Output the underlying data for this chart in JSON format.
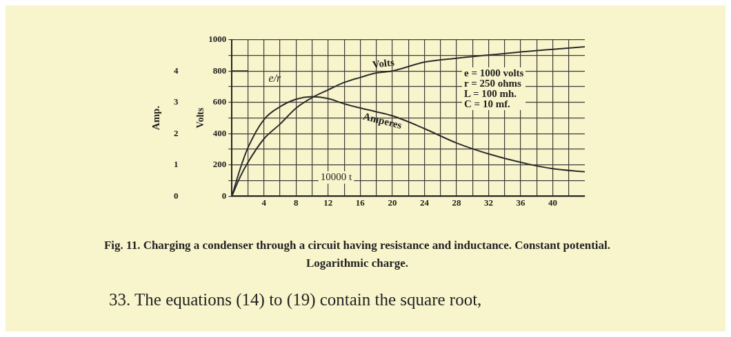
{
  "chart_data": {
    "type": "line",
    "xlabel": "10000 t",
    "ylabel": "Volts",
    "y2label": "Amp.",
    "x": [
      0,
      1,
      2,
      4,
      6,
      8,
      10,
      12,
      14,
      16,
      18,
      20,
      24,
      28,
      32,
      36,
      40,
      44
    ],
    "series": [
      {
        "name": "Volts",
        "color": "#2b2b2b",
        "values": [
          0,
          120,
          216,
          367,
          461,
          563,
          630,
          680,
          727,
          759,
          788,
          800,
          857,
          882,
          902,
          922,
          939,
          955
        ]
      },
      {
        "name": "Amperes",
        "color": "#2b2b2b",
        "axis": "y2",
        "values": [
          0,
          0.85,
          1.55,
          2.45,
          2.86,
          3.1,
          3.18,
          3.12,
          2.95,
          2.82,
          2.7,
          2.57,
          2.16,
          1.7,
          1.35,
          1.08,
          0.88,
          0.78
        ]
      },
      {
        "name": "e/r",
        "color": "#2b2b2b",
        "x": [
          0,
          2
        ],
        "values": [
          800,
          800
        ]
      }
    ],
    "xlim": [
      0,
      44
    ],
    "xticks": [
      {
        "value": 2,
        "label": null
      },
      4,
      {
        "value": 6,
        "label": null
      },
      8,
      {
        "value": 10,
        "label": null
      },
      12,
      {
        "value": 14,
        "label": null
      },
      16,
      {
        "value": 18,
        "label": null
      },
      20,
      {
        "value": 22,
        "label": null
      },
      24,
      {
        "value": 26,
        "label": null
      },
      28,
      {
        "value": 30,
        "label": null
      },
      32,
      {
        "value": 34,
        "label": null
      },
      36,
      {
        "value": 38,
        "label": null
      },
      40,
      {
        "value": 42,
        "label": null
      }
    ],
    "ylim": [
      0,
      1000
    ],
    "yticks": [
      0,
      {
        "value": 100,
        "label": null
      },
      200,
      {
        "value": 300,
        "label": null
      },
      400,
      {
        "value": 500,
        "label": null
      },
      600,
      {
        "value": 700,
        "label": null
      },
      800,
      {
        "value": 900,
        "label": null
      },
      1000
    ],
    "y2lim": [
      0,
      5
    ],
    "y2ticks": [
      0,
      1,
      2,
      3,
      4
    ],
    "grid": true,
    "legend": false,
    "marker": "none",
    "line_style": "solid",
    "annotations": [
      "e = 1000 volts",
      "r = 250 ohms",
      "L = 100 mh.",
      "C = 10 mf.",
      "Fig. 11.   Charging a condenser through a circuit having resistance and inductance.   Constant potential.   Logarithmic charge.",
      "33. The equations (14) to (19) contain the square root,"
    ]
  }
}
